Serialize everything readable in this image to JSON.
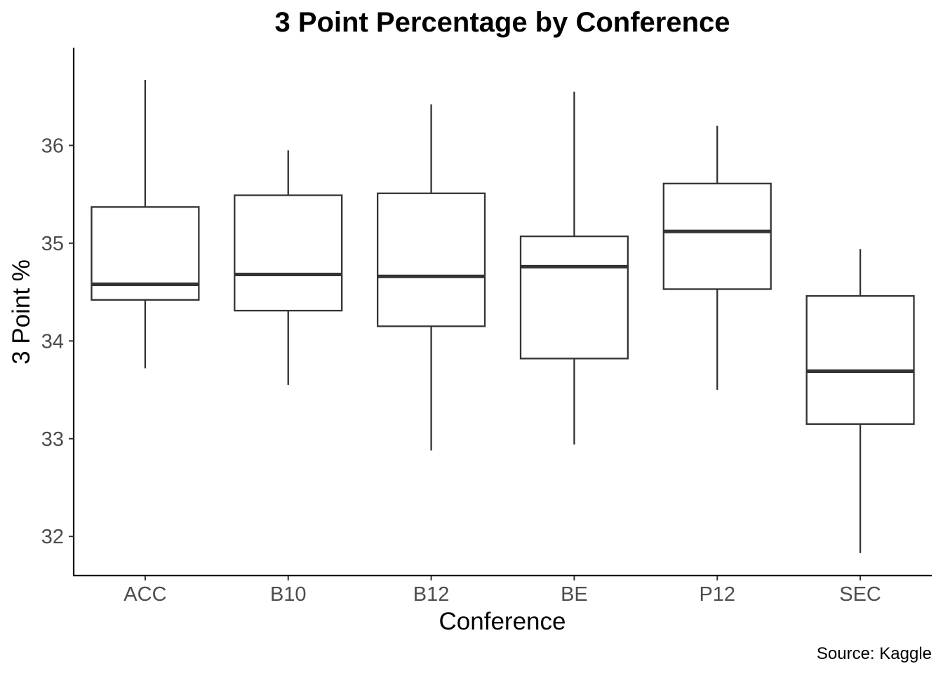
{
  "chart_data": {
    "type": "boxplot",
    "title": "3 Point Percentage by Conference",
    "xlabel": "Conference",
    "ylabel": "3 Point %",
    "caption": "Source: Kaggle",
    "ylim": [
      31.6,
      37.0
    ],
    "yticks": [
      "32",
      "33",
      "34",
      "35",
      "36"
    ],
    "categories": [
      "ACC",
      "B10",
      "B12",
      "BE",
      "P12",
      "SEC"
    ],
    "boxes": [
      {
        "category": "ACC",
        "whisker_low": 33.72,
        "q1": 34.42,
        "median": 34.58,
        "q3": 35.37,
        "whisker_high": 36.67
      },
      {
        "category": "B10",
        "whisker_low": 33.55,
        "q1": 34.31,
        "median": 34.68,
        "q3": 35.49,
        "whisker_high": 35.95
      },
      {
        "category": "B12",
        "whisker_low": 32.88,
        "q1": 34.15,
        "median": 34.66,
        "q3": 35.51,
        "whisker_high": 36.42
      },
      {
        "category": "BE",
        "whisker_low": 32.94,
        "q1": 33.82,
        "median": 34.76,
        "q3": 35.07,
        "whisker_high": 36.55
      },
      {
        "category": "P12",
        "whisker_low": 33.5,
        "q1": 34.53,
        "median": 35.12,
        "q3": 35.61,
        "whisker_high": 36.2
      },
      {
        "category": "SEC",
        "whisker_low": 31.83,
        "q1": 33.15,
        "median": 33.69,
        "q3": 34.46,
        "whisker_high": 34.94
      }
    ],
    "grid": false,
    "legend": "none",
    "colors": {
      "box_stroke": "#333333",
      "median": "#333333",
      "axis": "#000000",
      "tick_label": "#4d4d4d",
      "background": "#ffffff"
    }
  }
}
